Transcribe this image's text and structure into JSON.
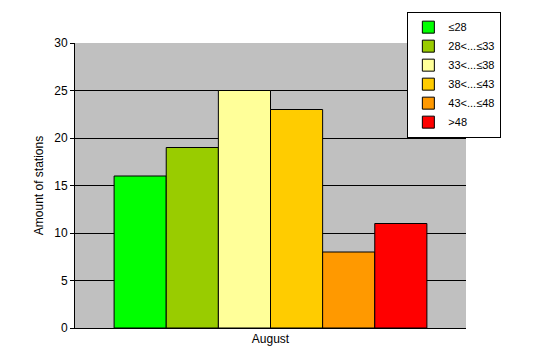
{
  "chart_data": {
    "type": "bar",
    "categories": [
      "August"
    ],
    "series": [
      {
        "name": "≤28",
        "color": "#00ff00",
        "values": [
          16
        ]
      },
      {
        "name": "28<...≤33",
        "color": "#99cc00",
        "values": [
          19
        ]
      },
      {
        "name": "33<...≤38",
        "color": "#ffff99",
        "values": [
          25
        ]
      },
      {
        "name": "38<...≤43",
        "color": "#ffcc00",
        "values": [
          23
        ]
      },
      {
        "name": "43<...≤48",
        "color": "#ff9900",
        "values": [
          8
        ]
      },
      {
        "name": ">48",
        "color": "#ff0000",
        "values": [
          11
        ]
      }
    ],
    "y_label": "Amount of stations",
    "ylim": [
      0,
      30
    ],
    "yticks": [
      0,
      5,
      10,
      15,
      20,
      25,
      30
    ],
    "grid": true,
    "legend": "top right"
  }
}
